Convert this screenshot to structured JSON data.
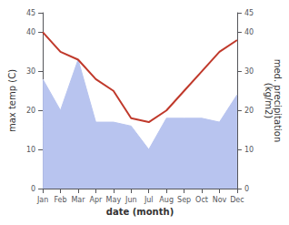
{
  "chart_data": {
    "type": "line",
    "xlabel": "date (month)",
    "ylabel": "max temp (C)",
    "y2label": "med. precipitation\n(kg/m2)",
    "categories": [
      "Jan",
      "Feb",
      "Mar",
      "Apr",
      "May",
      "Jun",
      "Jul",
      "Aug",
      "Sep",
      "Oct",
      "Nov",
      "Dec"
    ],
    "series": [
      {
        "type": "area",
        "axis": "y2",
        "color": "#b8c4ef",
        "values": [
          28,
          20,
          33,
          17,
          17,
          16,
          10,
          18,
          18,
          18,
          17,
          24
        ]
      },
      {
        "type": "line",
        "color": "#c0392b",
        "values": [
          40,
          35,
          33,
          28,
          25,
          18,
          17,
          20,
          25,
          30,
          35,
          38
        ]
      }
    ],
    "ylim": [
      0,
      45
    ],
    "yticks": [
      0,
      10,
      20,
      30,
      40
    ],
    "y2lim": [
      0,
      45
    ],
    "y2ticks": [
      0,
      10,
      20,
      30,
      40
    ],
    "grid": false
  }
}
